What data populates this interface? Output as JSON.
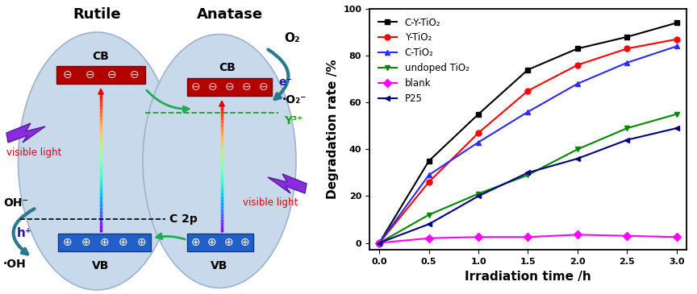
{
  "diagram": {
    "phases": [
      {
        "name": "Rutile",
        "cb": {
          "label": "CB",
          "symbols": [
            "⊖",
            "⊖",
            "⊖",
            "⊖"
          ]
        },
        "vb": {
          "label": "VB",
          "symbols": [
            "⊕",
            "⊕",
            "⊕",
            "⊕",
            "⊕"
          ]
        },
        "light": "visible light"
      },
      {
        "name": "Anatase",
        "cb": {
          "label": "CB",
          "symbols": [
            "⊖",
            "⊖",
            "⊖",
            "⊖",
            "⊖"
          ]
        },
        "vb": {
          "label": "VB",
          "symbols": [
            "⊕",
            "⊕",
            "⊕",
            "⊕"
          ]
        },
        "light": "visible light"
      }
    ],
    "labels": {
      "oxygen": "O₂",
      "electron": "e⁻",
      "superoxide": "·O₂⁻",
      "yttrium": "Y³⁺",
      "carbon_level": "C 2p",
      "hydroxide": "OH⁻",
      "hole": "h⁺",
      "hydroxyl": "·OH"
    }
  },
  "chart_data": {
    "type": "line",
    "x_label": "Irradiation time /h",
    "y_label": "Degradation rate /%",
    "x": [
      0.0,
      0.5,
      1.0,
      1.5,
      2.0,
      2.5,
      3.0
    ],
    "xlim": [
      -0.1,
      3.1
    ],
    "xticks": [
      {
        "value": 0,
        "label": "0.0"
      },
      {
        "value": 0.5,
        "label": "0.5"
      },
      {
        "value": 1,
        "label": "1.0"
      },
      {
        "value": 1.5,
        "label": "1.5"
      },
      {
        "value": 2,
        "label": "2.0"
      },
      {
        "value": 2.5,
        "label": "2.5"
      },
      {
        "value": 3,
        "label": "3.0"
      }
    ],
    "ylim": [
      -3,
      100
    ],
    "yticks": [
      0,
      20,
      40,
      60,
      80,
      100
    ],
    "legend": "upper left",
    "series": [
      {
        "name": "C-Y-TiO₂",
        "color": "#000000",
        "marker": "square",
        "values": [
          0,
          35,
          55,
          74,
          83,
          88,
          94
        ]
      },
      {
        "name": "Y-TiO₂",
        "color": "#ff0000",
        "marker": "circle",
        "values": [
          0,
          26,
          47,
          65,
          76,
          83,
          87
        ]
      },
      {
        "name": "C-TiO₂",
        "color": "#2b2bff",
        "marker": "triangle_up",
        "values": [
          0,
          29,
          43,
          56,
          68,
          77,
          84
        ]
      },
      {
        "name": "undoped TiO₂",
        "color": "#008800",
        "marker": "triangle_down",
        "values": [
          0,
          12,
          21,
          29,
          40,
          49,
          55
        ]
      },
      {
        "name": "blank",
        "color": "#ff00ff",
        "marker": "diamond",
        "values": [
          0,
          2,
          2.5,
          2.5,
          3.5,
          3,
          2.5
        ]
      },
      {
        "name": "P25",
        "color": "#000080",
        "marker": "triangle_left",
        "values": [
          0,
          8,
          20,
          30,
          36,
          44,
          49
        ]
      }
    ]
  }
}
